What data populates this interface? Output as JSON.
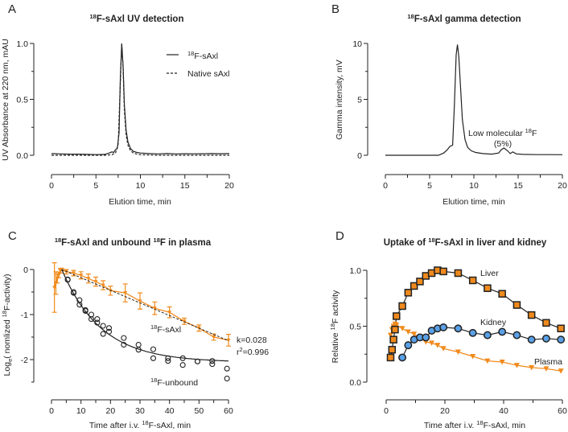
{
  "panels": {
    "A": {
      "letter": "A",
      "title_sup": "18",
      "title_rest": "F-sAxl UV detection",
      "ylabel": "UV Absorbance at 220 nm, mAU",
      "xlabel": "Elution time, min",
      "legend": [
        {
          "sup": "18",
          "rest": "F-sAxl",
          "style": "solid"
        },
        {
          "sup": "",
          "rest": "Native sAxl",
          "style": "dashed"
        }
      ]
    },
    "B": {
      "letter": "B",
      "title_sup": "18",
      "title_rest": "F-sAxl gamma detection",
      "ylabel": "Gamma intensity, mV",
      "xlabel": "Elution time, min",
      "annotation_line1": "Low molecular ",
      "annotation_sup": "18",
      "annotation_f": "F",
      "annotation_line2": "(5%)"
    },
    "C": {
      "letter": "C",
      "title_sup1": "18",
      "title_mid": "F-sAxl and unbound ",
      "title_sup2": "18",
      "title_end": "F in plasma",
      "ylabel_pre": "Log",
      "ylabel_sub": "e",
      "ylabel_mid": "( nomlized ",
      "ylabel_sup": "18",
      "ylabel_end": "F-activity)",
      "xlabel_pre": "Time after i.v. ",
      "xlabel_sup": "18",
      "xlabel_end": "F-sAxl, min",
      "label_saxl_sup": "18",
      "label_saxl": "F-sAxl",
      "label_unbound_sup": "18",
      "label_unbound": "F-unbound",
      "k_text": "k=0.028",
      "r2_pre": "r",
      "r2_sup": "2",
      "r2_end": "=0.996"
    },
    "D": {
      "letter": "D",
      "title_pre": "Uptake of ",
      "title_sup": "18",
      "title_end": "F-sAxl in liver and kidney",
      "ylabel_pre": "Relative ",
      "ylabel_sup": "18",
      "ylabel_end": "F activity",
      "xlabel_pre": "Time after i.v. ",
      "xlabel_sup": "18",
      "xlabel_end": "F-sAxl, min",
      "label_liver": "Liver",
      "label_kidney": "Kidney",
      "label_plasma": "Plasma"
    }
  },
  "chart_data": [
    {
      "panel": "A",
      "type": "line",
      "xlim": [
        0,
        20
      ],
      "ylim": [
        0,
        1.0
      ],
      "xticks": [
        0,
        5,
        10,
        15,
        20
      ],
      "yticks": [
        0.0,
        0.5,
        1.0
      ],
      "ytick_labels": [
        "0.0",
        "0.5",
        "1.0"
      ],
      "series": [
        {
          "name": "18F-sAxl",
          "color": "#222222",
          "dash": false,
          "x": [
            0,
            1,
            2,
            3,
            4,
            5,
            6,
            6.5,
            6.8,
            7.0,
            7.2,
            7.4,
            7.6,
            7.75,
            7.9,
            8.05,
            8.2,
            8.4,
            8.6,
            8.9,
            9.2,
            9.6,
            10,
            11,
            12,
            13,
            14,
            15,
            16,
            17,
            18,
            19,
            20
          ],
          "y": [
            0.015,
            0.012,
            0.01,
            0.01,
            0.008,
            0.006,
            0.008,
            0.02,
            0.03,
            0.025,
            0.05,
            0.06,
            0.2,
            0.7,
            1.0,
            0.8,
            0.45,
            0.22,
            0.12,
            0.06,
            0.035,
            0.025,
            0.02,
            0.015,
            0.012,
            0.015,
            0.012,
            0.014,
            0.013,
            0.014,
            0.015,
            0.014,
            0.015
          ]
        },
        {
          "name": "Native sAxl",
          "color": "#222222",
          "dash": true,
          "x": [
            0,
            2,
            4,
            6,
            6.8,
            7.2,
            7.5,
            7.7,
            7.9,
            8.05,
            8.2,
            8.4,
            8.6,
            8.9,
            9.2,
            9.6,
            10,
            12,
            14,
            16,
            18,
            20
          ],
          "y": [
            0,
            0,
            0,
            0,
            0.005,
            0.02,
            0.1,
            0.55,
            0.99,
            0.78,
            0.4,
            0.18,
            0.09,
            0.04,
            0.02,
            0.01,
            0.005,
            0,
            0,
            0,
            0,
            0
          ]
        }
      ]
    },
    {
      "panel": "B",
      "type": "line",
      "xlim": [
        0,
        20
      ],
      "ylim": [
        0,
        10
      ],
      "xticks": [
        0,
        5,
        10,
        15,
        20
      ],
      "yticks": [
        0,
        5,
        10
      ],
      "ytick_labels": [
        "0",
        "5",
        "10"
      ],
      "series": [
        {
          "color": "#222222",
          "x": [
            0,
            2,
            4,
            6,
            6.6,
            7.0,
            7.3,
            7.6,
            7.8,
            8.0,
            8.15,
            8.3,
            8.5,
            8.7,
            9.0,
            9.3,
            9.7,
            10.2,
            11,
            12,
            12.8,
            13.1,
            13.4,
            13.8,
            14.1,
            14.4,
            14.8,
            15.5,
            17,
            18.5,
            20
          ],
          "y": [
            0,
            0,
            0,
            0,
            0.2,
            0.5,
            0.8,
            0.9,
            4.5,
            9.0,
            9.9,
            8.8,
            6.0,
            3.2,
            1.4,
            0.7,
            0.4,
            0.25,
            0.15,
            0.1,
            0.2,
            0.5,
            0.65,
            0.4,
            0.15,
            0.3,
            0.12,
            0.08,
            0.06,
            0.06,
            0.05
          ]
        }
      ]
    },
    {
      "panel": "C",
      "type": "scatter",
      "xlim": [
        0,
        60
      ],
      "ylim": [
        -2.5,
        0
      ],
      "xticks": [
        0,
        10,
        20,
        30,
        40,
        50,
        60
      ],
      "yticks": [
        0,
        -1,
        -2
      ],
      "ytick_labels": [
        "0",
        "-1",
        "-2"
      ],
      "series": [
        {
          "name": "18F-sAxl",
          "color": "#f08a1c",
          "marker": "triangle-down",
          "connected": true,
          "x": [
            1,
            1.5,
            2,
            2.5,
            3,
            3.5,
            5,
            7.5,
            10,
            12.5,
            15,
            17.5,
            20,
            25,
            30,
            35,
            40,
            45,
            50,
            55,
            60
          ],
          "y": [
            -0.4,
            -0.3,
            -0.2,
            -0.12,
            -0.03,
            0,
            -0.05,
            -0.08,
            -0.13,
            -0.2,
            -0.27,
            -0.35,
            -0.47,
            -0.52,
            -0.7,
            -0.86,
            -0.95,
            -1.15,
            -1.3,
            -1.5,
            -1.57
          ],
          "err": [
            0.55,
            0.25,
            0.1,
            0.06,
            0.05,
            0.03,
            0.05,
            0.06,
            0.08,
            0.1,
            0.1,
            0.1,
            0.1,
            0.2,
            0.18,
            0.14,
            0.12,
            0.07,
            0.07,
            0.07,
            0.13
          ]
        },
        {
          "name": "18F-unbound",
          "color": "#222222",
          "marker": "open-circle",
          "x": [
            5.5,
            5.5,
            7.5,
            7.5,
            9.5,
            9.5,
            11.5,
            11.5,
            13.5,
            13.5,
            15.5,
            15.5,
            17.5,
            17.5,
            19.5,
            19.5,
            24.5,
            24.5,
            29.5,
            29.5,
            34.5,
            34.5,
            39.5,
            39.5,
            44.5,
            44.5,
            49.5,
            49.5,
            54.5,
            54.5,
            59.5,
            59.5
          ],
          "y": [
            -0.22,
            -0.23,
            -0.5,
            -0.52,
            -0.68,
            -0.78,
            -0.9,
            -0.92,
            -1.0,
            -1.1,
            -1.1,
            -1.18,
            -1.25,
            -1.43,
            -1.3,
            -1.38,
            -1.52,
            -1.67,
            -1.67,
            -1.78,
            -1.77,
            -1.97,
            -1.97,
            -2.03,
            -1.97,
            -2.12,
            -2.04,
            -2.04,
            -2.03,
            -2.1,
            -2.2,
            -2.42
          ]
        }
      ],
      "fit": {
        "k": 0.028,
        "r2": 0.996
      }
    },
    {
      "panel": "D",
      "type": "line",
      "xlim": [
        0,
        60
      ],
      "ylim": [
        0,
        1.0
      ],
      "xticks": [
        0,
        20,
        40,
        60
      ],
      "yticks": [
        0.0,
        0.5,
        1.0
      ],
      "ytick_labels": [
        "0.0",
        "0.5",
        "1.0"
      ],
      "series": [
        {
          "name": "Liver",
          "color": "#f08a1c",
          "marker": "square",
          "x": [
            1.5,
            2,
            2.5,
            3,
            3.5,
            5.5,
            7.5,
            9.5,
            11.5,
            13.5,
            15.5,
            17.5,
            19.5,
            24.5,
            29.5,
            34.5,
            39.5,
            44.5,
            49.5,
            54.5,
            59.5
          ],
          "y": [
            0.22,
            0.29,
            0.38,
            0.47,
            0.59,
            0.68,
            0.8,
            0.86,
            0.9,
            0.95,
            0.975,
            1.0,
            0.99,
            0.975,
            0.91,
            0.84,
            0.79,
            0.69,
            0.6,
            0.53,
            0.48
          ]
        },
        {
          "name": "Kidney",
          "color": "#5aa0e6",
          "marker": "circle",
          "x": [
            5.5,
            7.5,
            9.5,
            11.5,
            13.5,
            15.5,
            17.5,
            19.5,
            24.5,
            29.5,
            34.5,
            39.5,
            44.5,
            49.5,
            54.5,
            59.5
          ],
          "y": [
            0.22,
            0.33,
            0.38,
            0.4,
            0.4,
            0.46,
            0.48,
            0.49,
            0.48,
            0.44,
            0.42,
            0.45,
            0.42,
            0.38,
            0.39,
            0.38
          ]
        },
        {
          "name": "Plasma",
          "color": "#f08a1c",
          "marker": "triangle-down",
          "x": [
            1.5,
            2,
            2.5,
            3,
            3.5,
            5.5,
            7.5,
            9.5,
            11.5,
            13.5,
            15.5,
            17.5,
            19.5,
            24.5,
            29.5,
            34.5,
            39.5,
            44.5,
            49.5,
            54.5,
            59.5
          ],
          "y": [
            0.42,
            0.47,
            0.5,
            0.52,
            0.51,
            0.48,
            0.45,
            0.43,
            0.39,
            0.36,
            0.35,
            0.33,
            0.3,
            0.27,
            0.23,
            0.19,
            0.18,
            0.15,
            0.13,
            0.12,
            0.1
          ]
        }
      ]
    }
  ]
}
